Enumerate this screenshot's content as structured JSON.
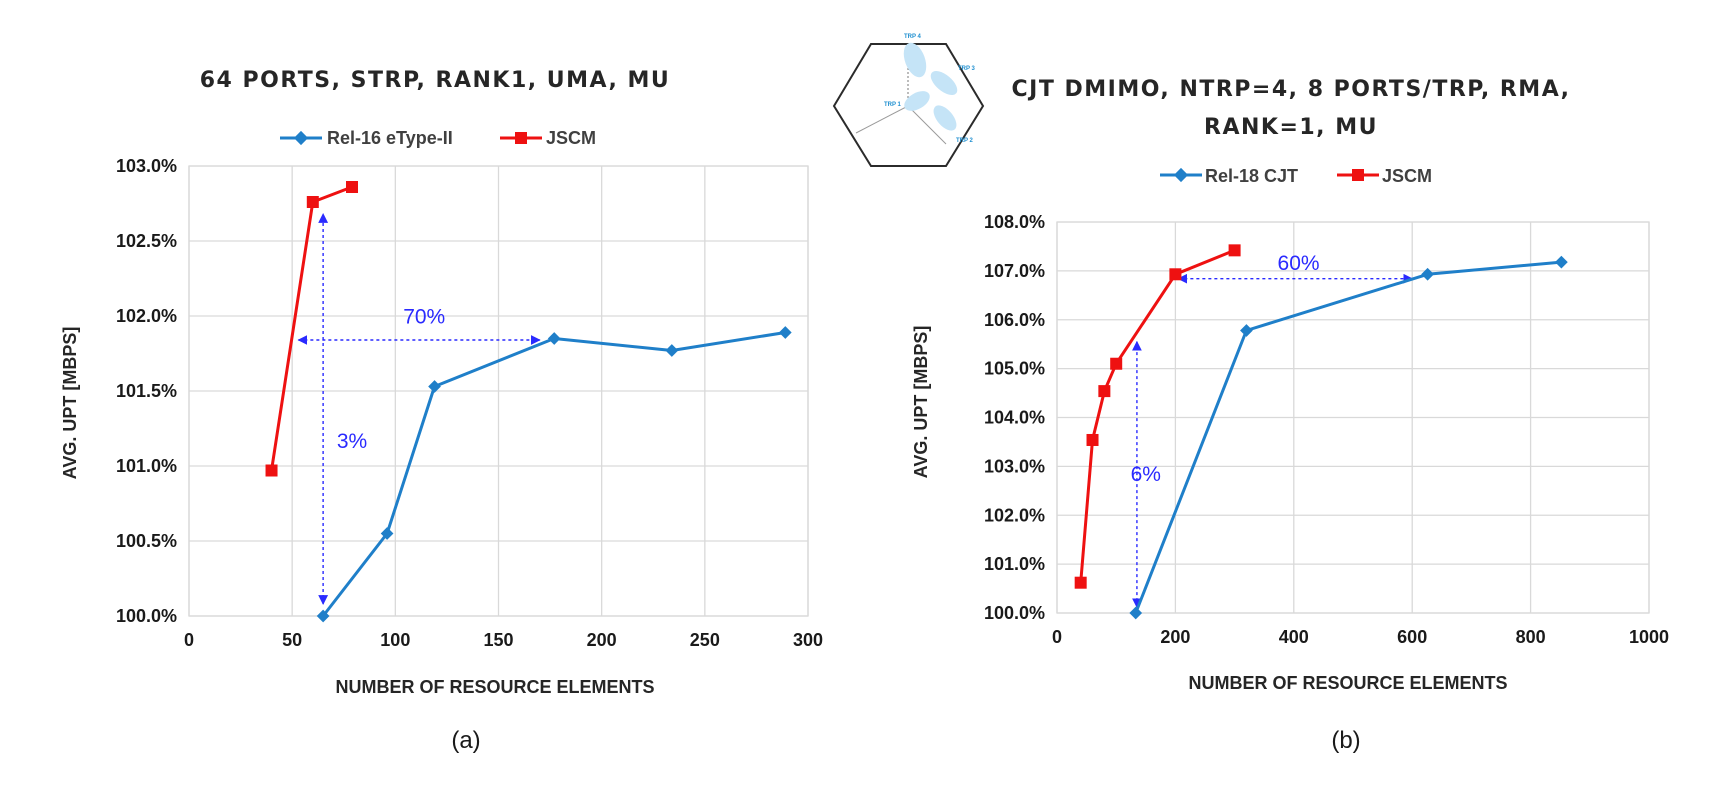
{
  "chart_data": [
    {
      "type": "line",
      "title": "64 PORTS, STRP, RANK1, UMA, MU",
      "xlabel": "NUMBER OF RESOURCE ELEMENTS",
      "ylabel": "AVG. UPT [MBPS]",
      "xlim": [
        0,
        300
      ],
      "ylim": [
        100.0,
        103.0
      ],
      "x_ticks": [
        "0",
        "50",
        "100",
        "150",
        "200",
        "250",
        "300"
      ],
      "x_tick_values": [
        0,
        50,
        100,
        150,
        200,
        250,
        300
      ],
      "y_ticks": [
        "100.0%",
        "100.5%",
        "101.0%",
        "101.5%",
        "102.0%",
        "102.5%",
        "103.0%"
      ],
      "y_tick_values": [
        100.0,
        100.5,
        101.0,
        101.5,
        102.0,
        102.5,
        103.0
      ],
      "grid": true,
      "legend_position": "top",
      "series": [
        {
          "name": "Rel-16 eType-II",
          "color": "#1f7fc9",
          "marker": "diamond",
          "x": [
            65,
            96,
            119,
            177,
            234,
            289
          ],
          "y": [
            100.0,
            100.55,
            101.53,
            101.85,
            101.77,
            101.89
          ]
        },
        {
          "name": "JSCM",
          "color": "#ee1111",
          "marker": "square",
          "x": [
            40,
            60,
            79
          ],
          "y": [
            100.97,
            102.76,
            102.86
          ]
        }
      ],
      "annotations": [
        {
          "text": "70%",
          "type": "horizontal-arrow",
          "x_from": 53,
          "x_to": 170,
          "y": 101.84,
          "label_x": 114,
          "label_y": 101.95
        },
        {
          "text": "3%",
          "type": "vertical-arrow",
          "x": 65,
          "y_from": 100.08,
          "y_to": 102.68,
          "label_x": 79,
          "label_y": 101.12
        }
      ],
      "panel_label": "(a)"
    },
    {
      "type": "line",
      "title": "CJT DMIMO, NTRP=4, 8 PORTS/TRP, RMA,",
      "title_line2": "RANK=1, MU",
      "xlabel": "NUMBER OF RESOURCE ELEMENTS",
      "ylabel": "AVG. UPT [MBPS]",
      "xlim": [
        0,
        1000
      ],
      "ylim": [
        100.0,
        108.0
      ],
      "x_ticks": [
        "0",
        "200",
        "400",
        "600",
        "800",
        "1000"
      ],
      "x_tick_values": [
        0,
        200,
        400,
        600,
        800,
        1000
      ],
      "y_ticks": [
        "100.0%",
        "101.0%",
        "102.0%",
        "103.0%",
        "104.0%",
        "105.0%",
        "106.0%",
        "107.0%",
        "108.0%"
      ],
      "y_tick_values": [
        100.0,
        101.0,
        102.0,
        103.0,
        104.0,
        105.0,
        106.0,
        107.0,
        108.0
      ],
      "grid": true,
      "legend_position": "top",
      "series": [
        {
          "name": "Rel-18 CJT",
          "color": "#1f7fc9",
          "marker": "diamond",
          "x": [
            133,
            320,
            626,
            852
          ],
          "y": [
            100.0,
            105.78,
            106.93,
            107.18
          ]
        },
        {
          "name": "JSCM",
          "color": "#ee1111",
          "marker": "square",
          "x": [
            40,
            60,
            80,
            100,
            200,
            300
          ],
          "y": [
            100.62,
            103.54,
            104.54,
            105.1,
            106.93,
            107.42
          ]
        }
      ],
      "annotations": [
        {
          "text": "60%",
          "type": "horizontal-arrow",
          "x_from": 205,
          "x_to": 600,
          "y": 106.84,
          "label_x": 408,
          "label_y": 107.02
        },
        {
          "text": "6%",
          "type": "vertical-arrow",
          "x": 135,
          "y_from": 100.12,
          "y_to": 105.55,
          "label_x": 150,
          "label_y": 102.7
        }
      ],
      "inset": {
        "trp_labels": [
          "TRP 4",
          "TRP 3",
          "TRP 1",
          "TRP 2"
        ]
      },
      "panel_label": "(b)"
    }
  ]
}
